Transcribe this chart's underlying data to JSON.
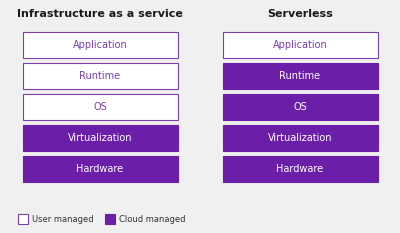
{
  "title_left": "Infrastructure as a service",
  "title_right": "Serverless",
  "layers": [
    "Application",
    "Runtime",
    "OS",
    "Virtualization",
    "Hardware"
  ],
  "iaas_filled": [
    false,
    false,
    false,
    true,
    true
  ],
  "serverless_filled": [
    false,
    true,
    true,
    true,
    true
  ],
  "purple": "#6b1fa8",
  "purple_border": "#7b3faa",
  "purple_text": "#7b3faa",
  "white_text": "#ffffff",
  "bg_color": "#f0f0f0",
  "title_color": "#1a1a1a",
  "legend_user": "User managed",
  "legend_cloud": "Cloud managed"
}
